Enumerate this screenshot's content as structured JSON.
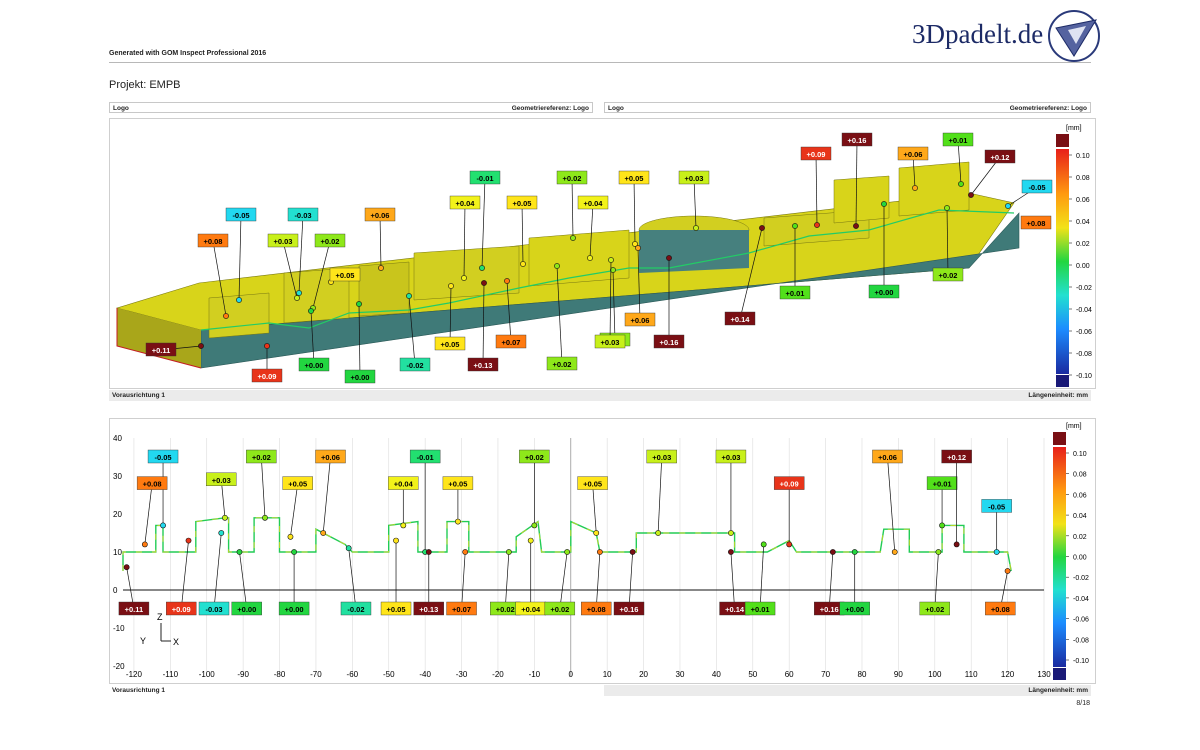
{
  "header": {
    "generated": "Generated with GOM Inspect Professional 2016",
    "brand": "3Dpadelt.de",
    "project": "Projekt: EMPB"
  },
  "top_panel": {
    "left_title": "Logo",
    "left_ref": "Geometriereferenz: Logo",
    "right_title": "Logo",
    "right_ref": "Geometriereferenz: Logo",
    "footer_left": "Vorausrichtung 1",
    "footer_right": "Längeneinheit: mm",
    "labels": [
      "+0.11",
      "+0.09",
      "+0.08",
      "-0.05",
      "-0.03",
      "+0.03",
      "+0.02",
      "+0.05",
      "+0.06",
      "+0.00",
      "+0.00",
      "-0.02",
      "+0.05",
      "+0.13",
      "+0.04",
      "-0.01",
      "+0.07",
      "+0.05",
      "+0.02",
      "+0.02",
      "+0.04",
      "+0.05",
      "+0.06",
      "+0.02",
      "+0.03",
      "+0.16",
      "+0.03",
      "+0.14",
      "+0.09",
      "+0.01",
      "+0.16",
      "+0.00",
      "+0.06",
      "+0.01",
      "+0.12",
      "+0.02",
      "-0.05",
      "+0.08"
    ]
  },
  "legend": {
    "unit": "[mm]",
    "ticks": [
      "0.10",
      "0.08",
      "0.06",
      "0.04",
      "0.02",
      "0.00",
      "-0.02",
      "-0.04",
      "-0.06",
      "-0.08",
      "-0.10"
    ],
    "colors": {
      "max": "#7a0f14",
      "min": "#1a1a78"
    }
  },
  "bottom_panel": {
    "footer_left": "Vorausrichtung 1",
    "footer_right": "Längeneinheit: mm",
    "axis_label_z": "Z",
    "axis_label_y": "Y",
    "axis_label_x": "X",
    "y_ticks": [
      "40",
      "30",
      "20",
      "10",
      "0",
      "-10",
      "-20"
    ],
    "x_ticks": [
      "-120",
      "-110",
      "-100",
      "-90",
      "-80",
      "-70",
      "-60",
      "-50",
      "-40",
      "-30",
      "-20",
      "-10",
      "0",
      "10",
      "20",
      "30",
      "40",
      "50",
      "60",
      "70",
      "80",
      "90",
      "100",
      "110",
      "120"
    ],
    "x_last": "130",
    "labels": [
      "-0.05",
      "+0.08",
      "+0.03",
      "+0.02",
      "+0.05",
      "+0.06",
      "+0.04",
      "-0.01",
      "+0.05",
      "+0.02",
      "+0.05",
      "+0.03",
      "+0.03",
      "+0.09",
      "+0.06",
      "+0.01",
      "+0.12",
      "-0.05",
      "+0.11",
      "+0.09",
      "-0.03",
      "+0.00",
      "+0.00",
      "-0.02",
      "+0.05",
      "+0.13",
      "+0.07",
      "+0.02",
      "+0.04",
      "+0.02",
      "+0.08",
      "+0.16",
      "+0.14",
      "+0.01",
      "+0.16",
      "+0.00",
      "+0.02",
      "+0.08"
    ]
  },
  "page": "8/18"
}
